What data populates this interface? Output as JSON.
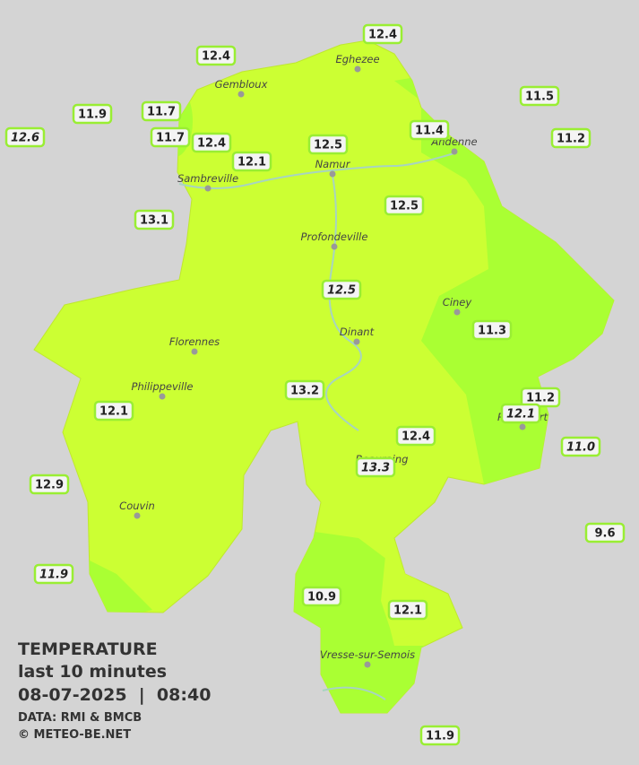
{
  "legend": {
    "title": "TEMPERATURE",
    "subtitle": "last 10 minutes",
    "datetime": "08-07-2025  |  08:40",
    "source": "DATA: RMI & BMCB",
    "credit": "© METEO-BE.NET"
  },
  "stations": [
    "12.4",
    "12.4",
    "11.9",
    "11.7",
    "11.5",
    "12.6",
    "11.7",
    "12.4",
    "12.5",
    "11.4",
    "11.2",
    "12.1",
    "12.5",
    "13.1",
    "12.5",
    "11.3",
    "13.2",
    "11.2",
    "12.1",
    "12.1",
    "12.4",
    "11.0",
    "13.3",
    "12.9",
    "9.6",
    "11.9",
    "10.9",
    "12.1",
    "11.9"
  ],
  "towns": [
    "Eghezee",
    "Gembloux",
    "Andenne",
    "Namur",
    "Sambreville",
    "Profondeville",
    "Ciney",
    "Dinant",
    "Florennes",
    "Philippeville",
    "Rochefort",
    "Beauraing",
    "Couvin",
    "Vresse-sur-Semois"
  ]
}
